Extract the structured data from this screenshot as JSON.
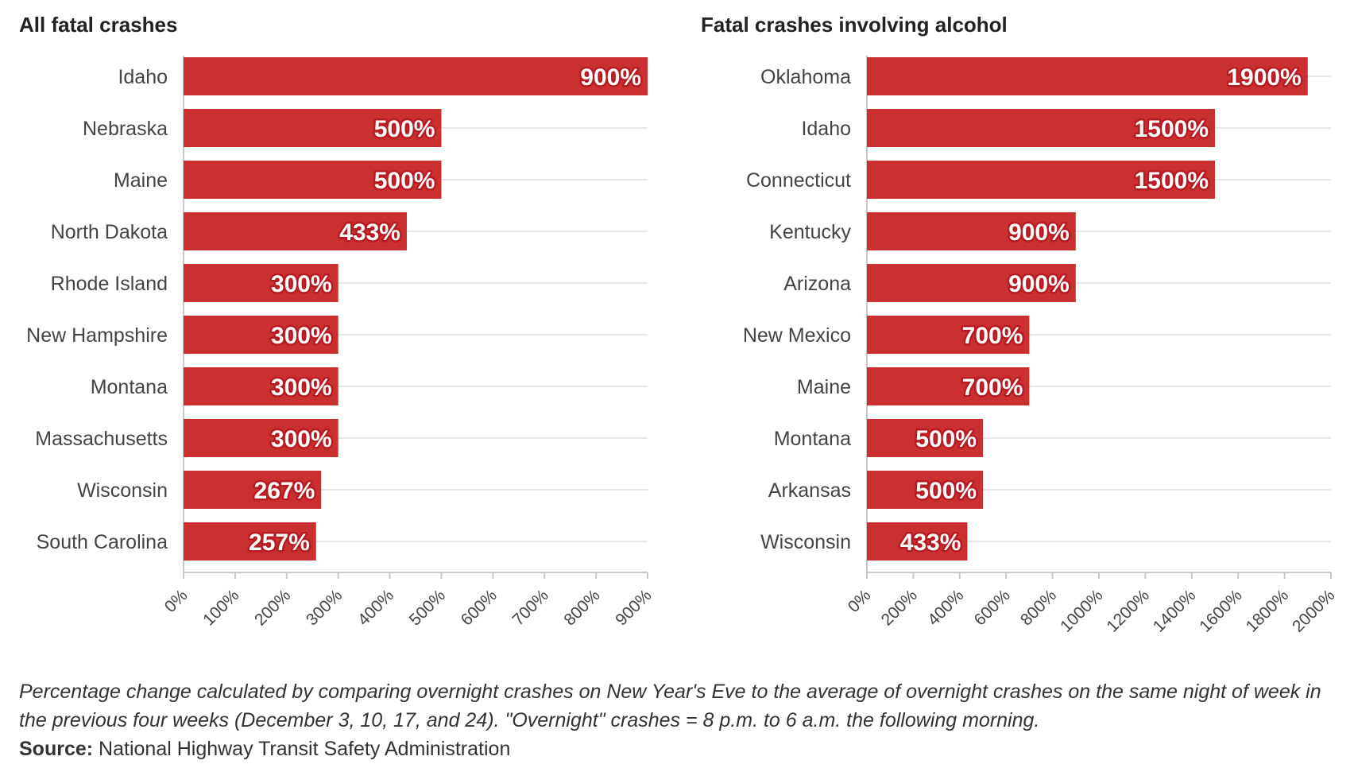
{
  "chart_data": [
    {
      "type": "bar",
      "orientation": "horizontal",
      "title": "All fatal crashes",
      "categories": [
        "Idaho",
        "Nebraska",
        "Maine",
        "North Dakota",
        "Rhode Island",
        "New Hampshire",
        "Montana",
        "Massachusetts",
        "Wisconsin",
        "South Carolina"
      ],
      "values": [
        900,
        500,
        500,
        433,
        300,
        300,
        300,
        300,
        267,
        257
      ],
      "xlim": [
        0,
        900
      ],
      "ticks": [
        0,
        100,
        200,
        300,
        400,
        500,
        600,
        700,
        800,
        900
      ],
      "tick_suffix": "%",
      "xlabel": "",
      "ylabel": "",
      "grid": true
    },
    {
      "type": "bar",
      "orientation": "horizontal",
      "title": "Fatal crashes involving alcohol",
      "categories": [
        "Oklahoma",
        "Idaho",
        "Connecticut",
        "Kentucky",
        "Arizona",
        "New Mexico",
        "Maine",
        "Montana",
        "Arkansas",
        "Wisconsin"
      ],
      "values": [
        1900,
        1500,
        1500,
        900,
        900,
        700,
        700,
        500,
        500,
        433
      ],
      "xlim": [
        0,
        2000
      ],
      "ticks": [
        0,
        200,
        400,
        600,
        800,
        1000,
        1200,
        1400,
        1600,
        1800,
        2000
      ],
      "tick_suffix": "%",
      "xlabel": "",
      "ylabel": "",
      "grid": true
    }
  ],
  "colors": {
    "bar": "#c9302f",
    "label_halo": "#b71a22",
    "grid": "#e6e6e6",
    "axis": "#c8c8c8"
  },
  "footer": {
    "note": "Percentage change calculated by comparing overnight crashes on New Year's Eve to the average of overnight crashes on the same night of week in the previous four weeks (December 3, 10, 17, and 24). \"Overnight\" crashes = 8 p.m. to 6 a.m. the following morning.",
    "source_label": "Source:",
    "source_text": "National Highway Transit Safety Administration"
  }
}
